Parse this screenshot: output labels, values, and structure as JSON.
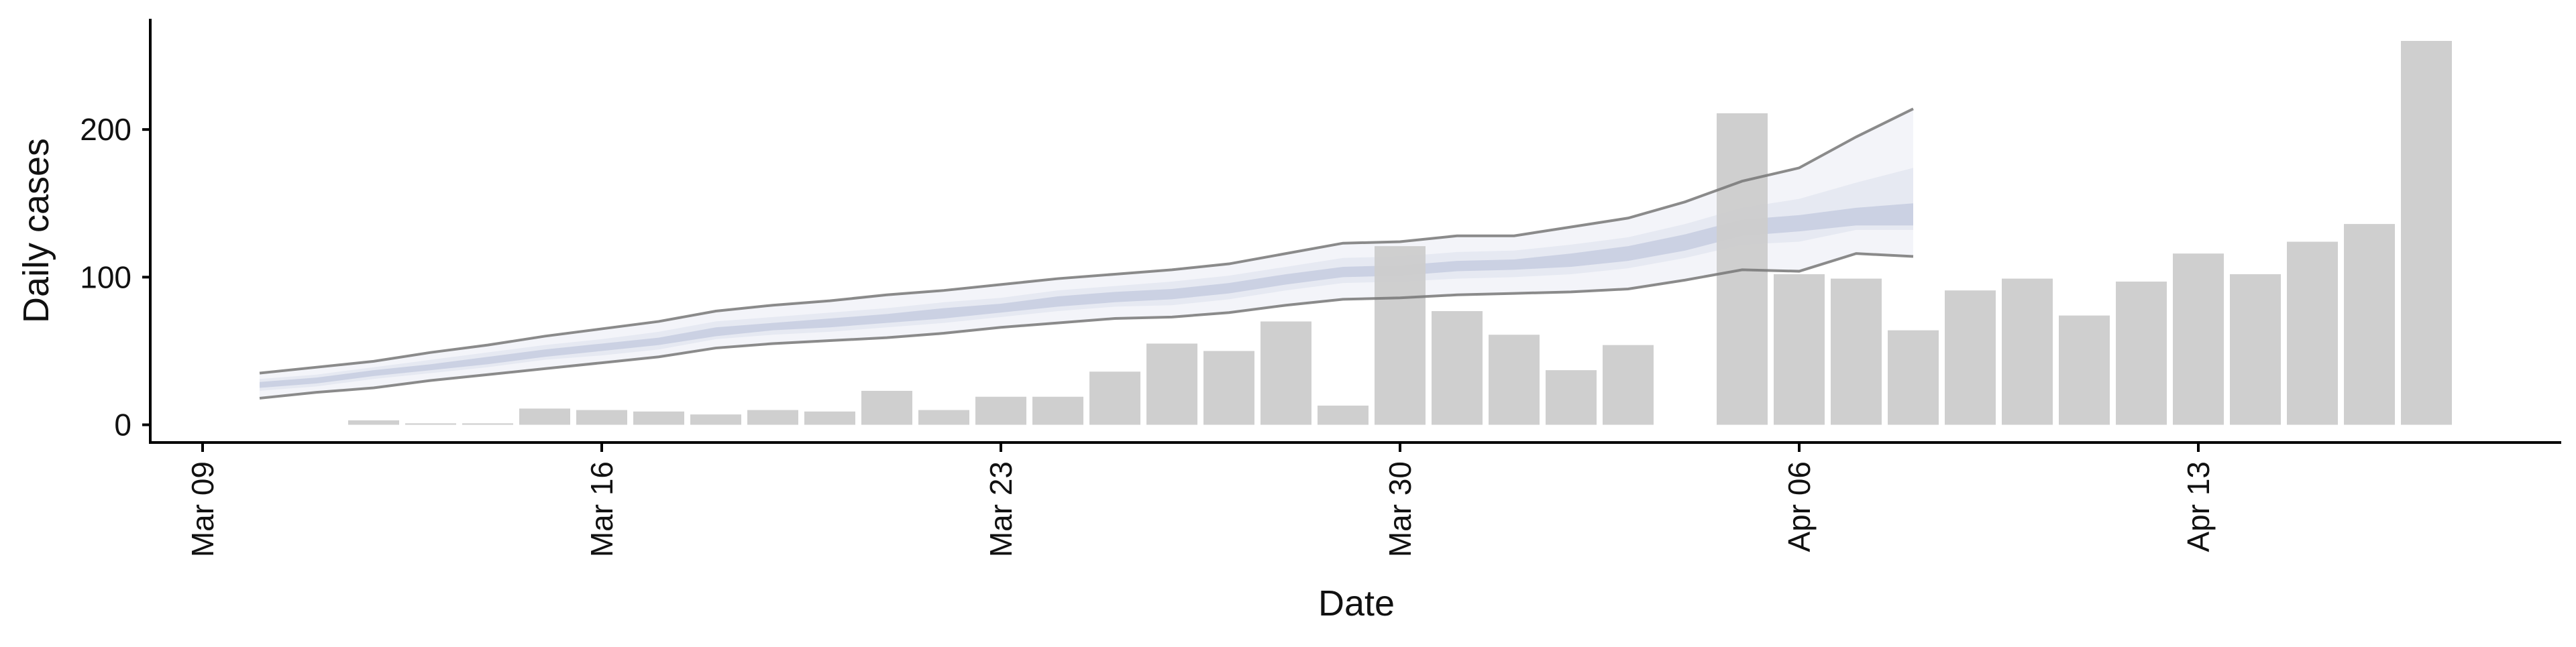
{
  "chart_data": {
    "type": "bar",
    "xlabel": "Date",
    "ylabel": "Daily cases",
    "x_ticks": [
      "Mar 09",
      "Mar 16",
      "Mar 23",
      "Mar 30",
      "Apr 06",
      "Apr 13"
    ],
    "y_ticks": [
      "0",
      "100",
      "200"
    ],
    "ylim": [
      -12,
      275
    ],
    "x_range": [
      "2020-03-09",
      "2020-04-18"
    ],
    "bar_color": "#cccccc",
    "band_colors": {
      "inner": "#c6cde0",
      "middle": "#dfe3ee",
      "outer_fill": "#eef0f6",
      "outer_line": "#777777"
    },
    "bars": [
      {
        "date": "2020-03-12",
        "value": 3
      },
      {
        "date": "2020-03-13",
        "value": 1
      },
      {
        "date": "2020-03-14",
        "value": 1
      },
      {
        "date": "2020-03-15",
        "value": 11
      },
      {
        "date": "2020-03-16",
        "value": 10
      },
      {
        "date": "2020-03-17",
        "value": 9
      },
      {
        "date": "2020-03-18",
        "value": 7
      },
      {
        "date": "2020-03-19",
        "value": 10
      },
      {
        "date": "2020-03-20",
        "value": 9
      },
      {
        "date": "2020-03-21",
        "value": 23
      },
      {
        "date": "2020-03-22",
        "value": 10
      },
      {
        "date": "2020-03-23",
        "value": 19
      },
      {
        "date": "2020-03-24",
        "value": 19
      },
      {
        "date": "2020-03-25",
        "value": 36
      },
      {
        "date": "2020-03-26",
        "value": 55
      },
      {
        "date": "2020-03-27",
        "value": 50
      },
      {
        "date": "2020-03-28",
        "value": 70
      },
      {
        "date": "2020-03-29",
        "value": 13
      },
      {
        "date": "2020-03-30",
        "value": 121
      },
      {
        "date": "2020-03-31",
        "value": 77
      },
      {
        "date": "2020-04-01",
        "value": 61
      },
      {
        "date": "2020-04-02",
        "value": 37
      },
      {
        "date": "2020-04-03",
        "value": 54
      },
      {
        "date": "2020-04-05",
        "value": 211
      },
      {
        "date": "2020-04-06",
        "value": 102
      },
      {
        "date": "2020-04-07",
        "value": 99
      },
      {
        "date": "2020-04-08",
        "value": 64
      },
      {
        "date": "2020-04-09",
        "value": 91
      },
      {
        "date": "2020-04-10",
        "value": 99
      },
      {
        "date": "2020-04-11",
        "value": 74
      },
      {
        "date": "2020-04-12",
        "value": 97
      },
      {
        "date": "2020-04-13",
        "value": 116
      },
      {
        "date": "2020-04-14",
        "value": 102
      },
      {
        "date": "2020-04-15",
        "value": 124
      },
      {
        "date": "2020-04-16",
        "value": 136
      },
      {
        "date": "2020-04-17",
        "value": 260
      }
    ],
    "bands": {
      "dates": [
        "2020-03-10",
        "2020-03-11",
        "2020-03-12",
        "2020-03-13",
        "2020-03-14",
        "2020-03-15",
        "2020-03-16",
        "2020-03-17",
        "2020-03-18",
        "2020-03-19",
        "2020-03-20",
        "2020-03-21",
        "2020-03-22",
        "2020-03-23",
        "2020-03-24",
        "2020-03-25",
        "2020-03-26",
        "2020-03-27",
        "2020-03-28",
        "2020-03-29",
        "2020-03-30",
        "2020-03-31",
        "2020-04-01",
        "2020-04-02",
        "2020-04-03",
        "2020-04-04",
        "2020-04-05",
        "2020-04-06",
        "2020-04-07",
        "2020-04-08"
      ],
      "outer_low": [
        18,
        22,
        25,
        30,
        34,
        38,
        42,
        46,
        52,
        55,
        57,
        59,
        62,
        66,
        69,
        72,
        73,
        76,
        81,
        85,
        86,
        88,
        89,
        90,
        92,
        98,
        105,
        104,
        116,
        114
      ],
      "outer_high": [
        35,
        39,
        43,
        49,
        54,
        60,
        65,
        70,
        77,
        81,
        84,
        88,
        91,
        95,
        99,
        102,
        105,
        109,
        116,
        123,
        124,
        128,
        128,
        134,
        140,
        151,
        165,
        174,
        195,
        214
      ],
      "mid_low": [
        23,
        26,
        31,
        35,
        39,
        44,
        47,
        51,
        58,
        61,
        63,
        66,
        69,
        73,
        77,
        80,
        81,
        85,
        91,
        96,
        97,
        99,
        100,
        102,
        106,
        113,
        122,
        124,
        132,
        132
      ],
      "mid_high": [
        31,
        34,
        39,
        44,
        49,
        54,
        58,
        63,
        70,
        73,
        76,
        79,
        83,
        86,
        91,
        94,
        97,
        101,
        107,
        113,
        114,
        117,
        118,
        122,
        127,
        136,
        147,
        153,
        164,
        174
      ],
      "inner_low": [
        25,
        28,
        33,
        37,
        41,
        46,
        50,
        54,
        60,
        64,
        66,
        69,
        72,
        76,
        80,
        83,
        85,
        89,
        95,
        100,
        101,
        104,
        105,
        107,
        111,
        118,
        128,
        131,
        135,
        135
      ],
      "inner_high": [
        29,
        32,
        37,
        41,
        46,
        51,
        55,
        59,
        66,
        69,
        72,
        75,
        79,
        82,
        87,
        90,
        92,
        96,
        102,
        107,
        108,
        111,
        112,
        116,
        121,
        129,
        139,
        142,
        147,
        150
      ]
    }
  }
}
